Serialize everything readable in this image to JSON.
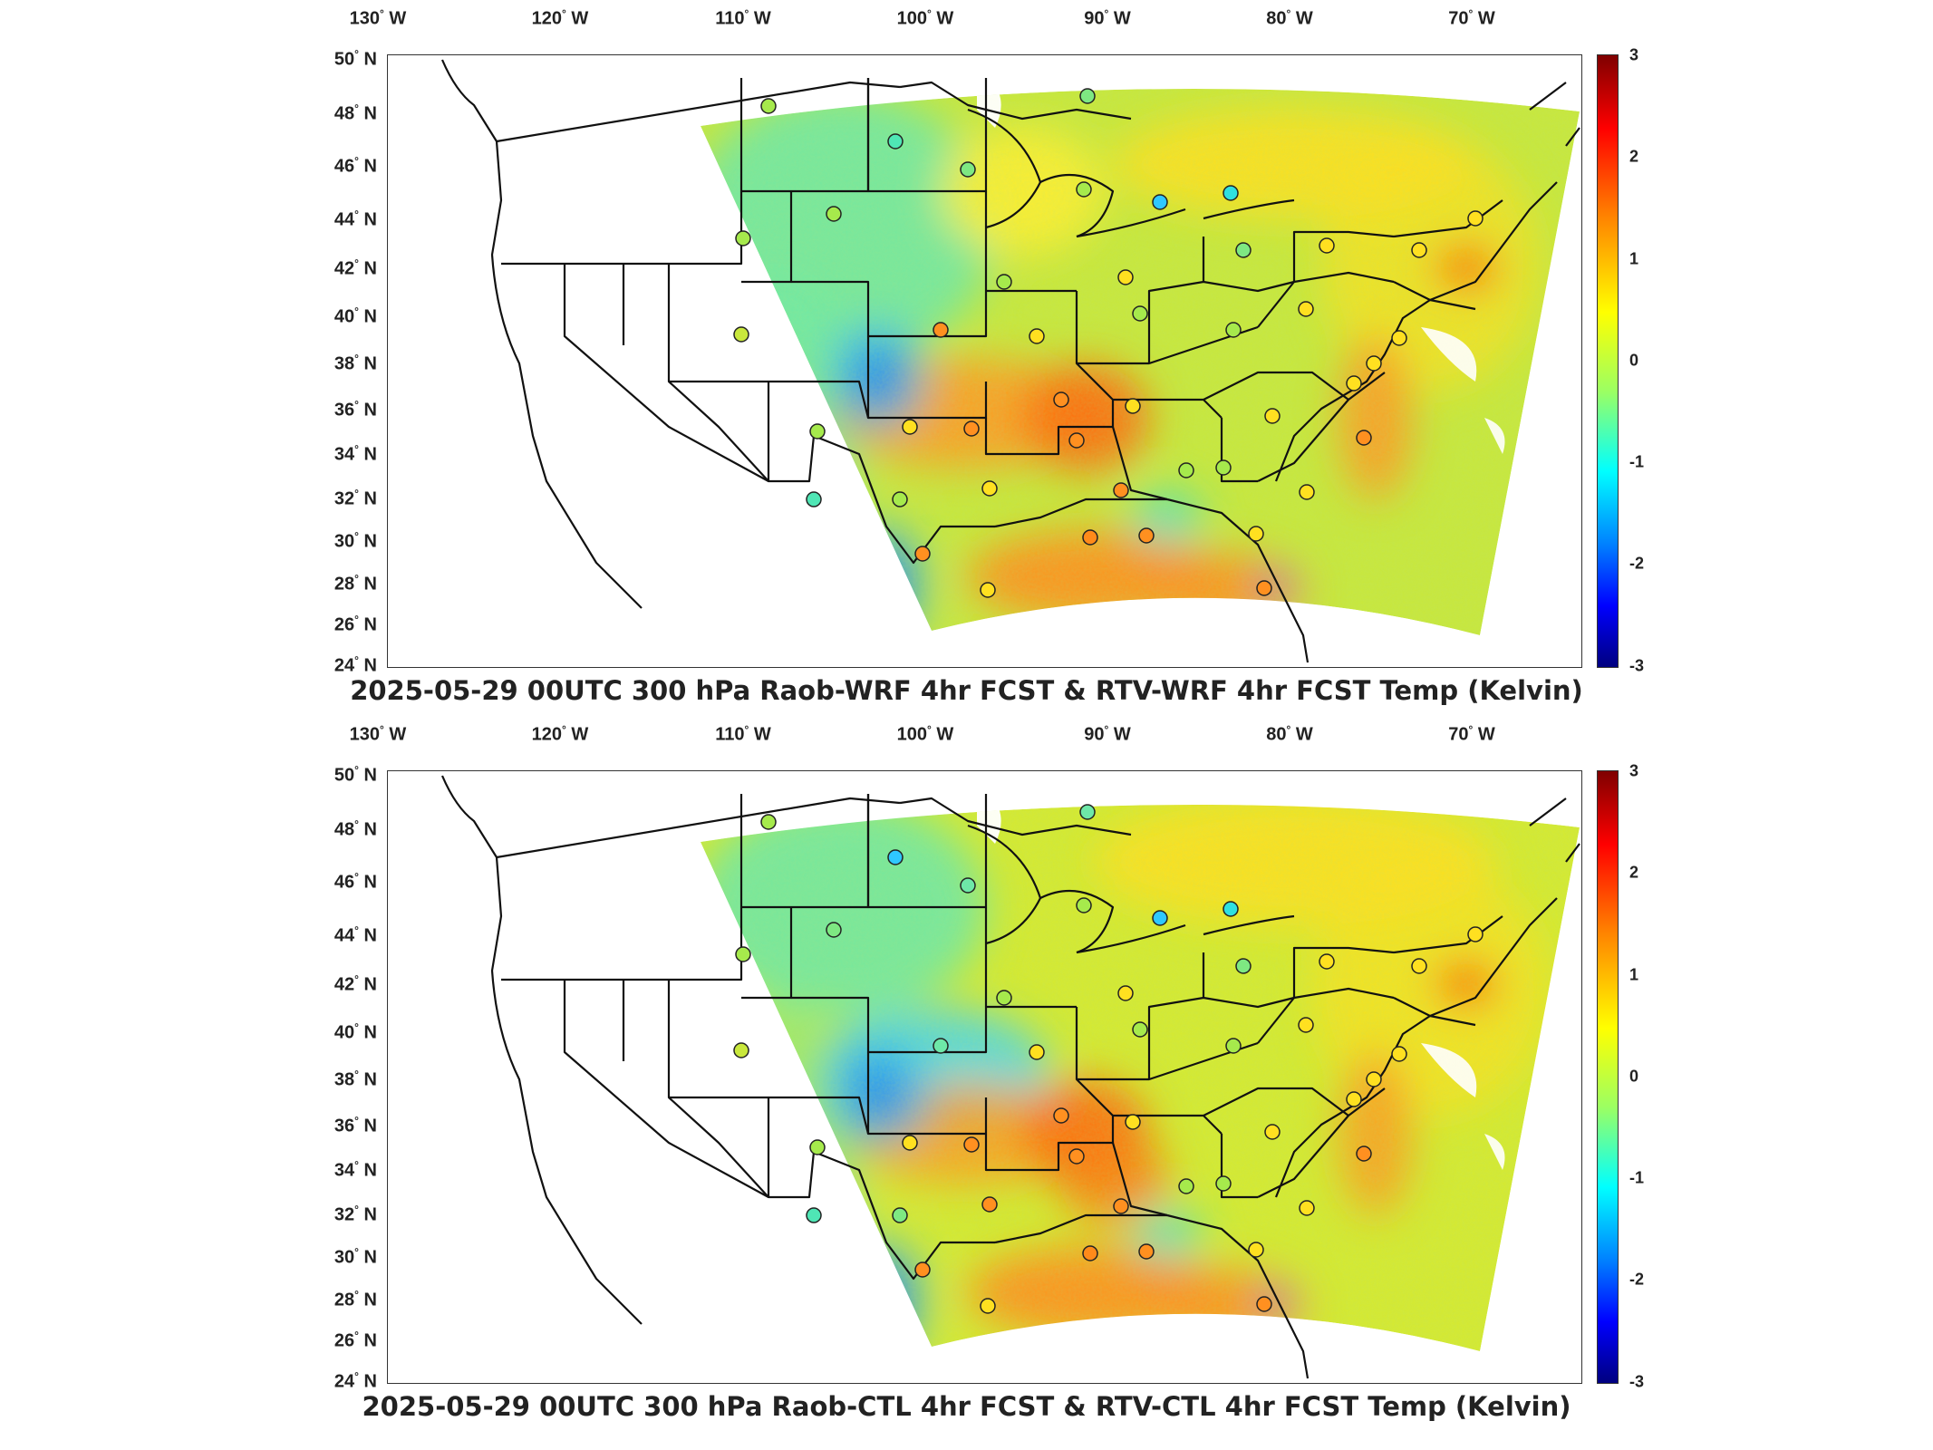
{
  "lon_labels": [
    "130",
    "120",
    "110",
    "100",
    "90",
    "80",
    "70"
  ],
  "lon_suffix": "W",
  "lat_labels": [
    "50",
    "48",
    "46",
    "44",
    "42",
    "40",
    "38",
    "36",
    "34",
    "32",
    "30",
    "28",
    "26",
    "24"
  ],
  "lat_suffix": "N",
  "colorbar": {
    "ticks": [
      "3",
      "2",
      "1",
      "0",
      "-1",
      "-2",
      "-3"
    ],
    "min": -3,
    "max": 3,
    "colormap": "jet"
  },
  "panels": [
    {
      "title": "2025-05-29 00UTC 300 hPa Raob-WRF 4hr FCST & RTV-WRF 4hr FCST Temp (Kelvin)"
    },
    {
      "title": "2025-05-29 00UTC 300 hPa Raob-CTL 4hr FCST & RTV-CTL 4hr FCST Temp (Kelvin)"
    }
  ],
  "colors": {
    "field_mean": "#c8e83a",
    "warm": "#ff8a1a",
    "cool": "#3fd3ff",
    "cold": "#1030d0",
    "boundary": "#111111"
  }
}
